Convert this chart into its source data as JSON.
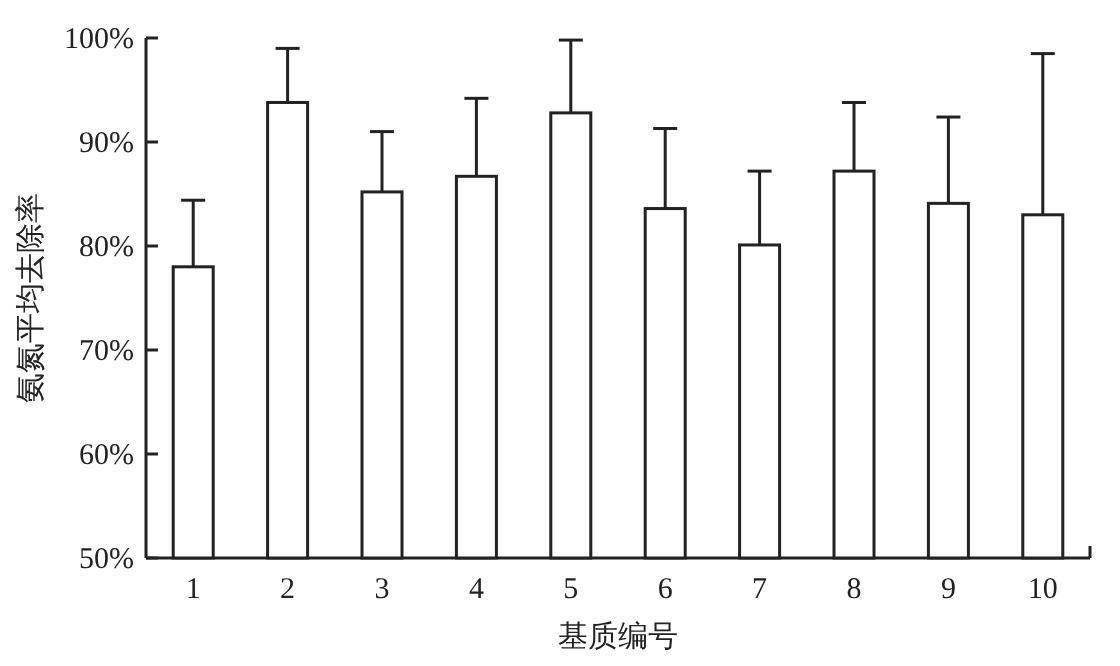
{
  "chart_data": {
    "type": "bar",
    "xlabel": "基质编号",
    "ylabel": "氨氮平均去除率",
    "categories": [
      "1",
      "2",
      "3",
      "4",
      "5",
      "6",
      "7",
      "8",
      "9",
      "10"
    ],
    "series": [
      {
        "color": "#ffffff",
        "values": [
          78.0,
          93.8,
          85.2,
          86.7,
          92.8,
          83.6,
          80.1,
          87.2,
          84.1,
          83.0
        ],
        "errors": [
          6.4,
          5.2,
          5.8,
          7.5,
          7.0,
          7.7,
          7.1,
          6.6,
          8.3,
          15.5
        ]
      }
    ],
    "ylim": [
      50,
      100
    ],
    "yticks": [
      {
        "value": 50,
        "label": "50%"
      },
      {
        "value": 60,
        "label": "60%"
      },
      {
        "value": 70,
        "label": "70%"
      },
      {
        "value": 80,
        "label": "80%"
      },
      {
        "value": 90,
        "label": "90%"
      },
      {
        "value": 100,
        "label": "100%"
      }
    ],
    "grid": false
  }
}
